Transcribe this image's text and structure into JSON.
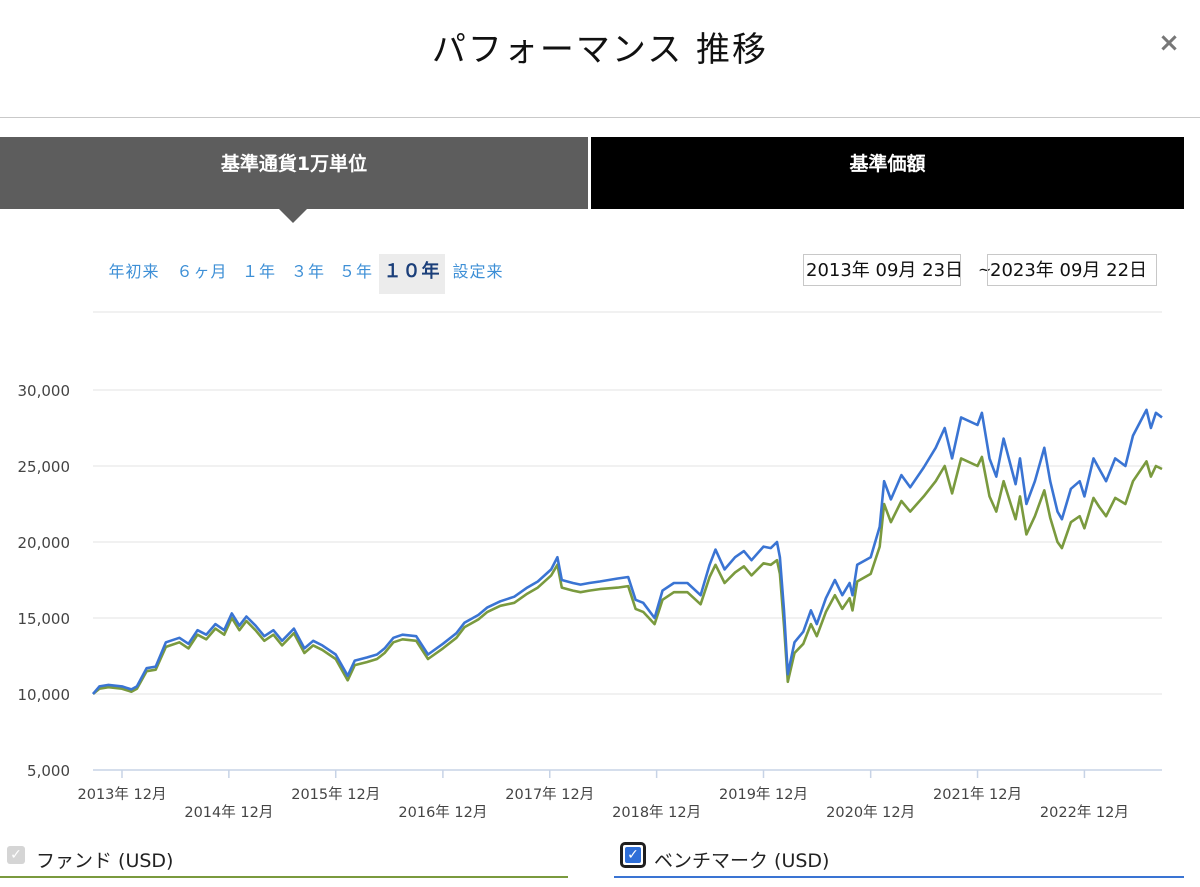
{
  "header": {
    "title": "パフォーマンス 推移",
    "close_label": "×"
  },
  "tabs": [
    {
      "label": "基準通貨1万単位",
      "active": true
    },
    {
      "label": "基準価額",
      "active": false
    }
  ],
  "ranges": [
    {
      "label": "年初来",
      "active": false
    },
    {
      "label": "６ヶ月",
      "active": false
    },
    {
      "label": "１年",
      "active": false
    },
    {
      "label": "３年",
      "active": false
    },
    {
      "label": "５年",
      "active": false
    },
    {
      "label": "１０年",
      "active": true
    },
    {
      "label": "設定来",
      "active": false
    }
  ],
  "date_range": {
    "from": "2013年 09月 23日",
    "separator": "~",
    "to": "2023年 09月 22日"
  },
  "legend": {
    "fund": {
      "label": "ファンド (USD)",
      "checked": true,
      "disabled": true,
      "color": "#7a9a3e"
    },
    "benchmark": {
      "label": "ベンチマーク (USD)",
      "checked": true,
      "color": "#3a74d3"
    }
  },
  "chart_data": {
    "type": "line",
    "title": "",
    "xlabel": "",
    "ylabel": "",
    "xlim": [
      "2013-09-23",
      "2023-09-22"
    ],
    "ylim": [
      5000,
      30000
    ],
    "yticks": [
      {
        "value": 5000,
        "label": "5,000"
      },
      {
        "value": 10000,
        "label": "10,000"
      },
      {
        "value": 15000,
        "label": "15,000"
      },
      {
        "value": 20000,
        "label": "20,000"
      },
      {
        "value": 25000,
        "label": "25,000"
      },
      {
        "value": 30000,
        "label": "30,000"
      }
    ],
    "xticks": [
      {
        "date": "2013-12-31",
        "label": "2013年 12月"
      },
      {
        "date": "2014-12-31",
        "label": "2014年 12月"
      },
      {
        "date": "2015-12-31",
        "label": "2015年 12月"
      },
      {
        "date": "2016-12-31",
        "label": "2016年 12月"
      },
      {
        "date": "2017-12-31",
        "label": "2017年 12月"
      },
      {
        "date": "2018-12-31",
        "label": "2018年 12月"
      },
      {
        "date": "2019-12-31",
        "label": "2019年 12月"
      },
      {
        "date": "2020-12-31",
        "label": "2020年 12月"
      },
      {
        "date": "2021-12-31",
        "label": "2021年 12月"
      },
      {
        "date": "2022-12-31",
        "label": "2022年 12月"
      }
    ],
    "grid": true,
    "series": [
      {
        "name": "ベンチマーク (USD)",
        "color": "#3a74d3",
        "points": [
          [
            "2013-09-23",
            10000
          ],
          [
            "2013-10-15",
            10500
          ],
          [
            "2013-11-15",
            10600
          ],
          [
            "2013-12-31",
            10500
          ],
          [
            "2014-02-01",
            10300
          ],
          [
            "2014-02-20",
            10500
          ],
          [
            "2014-03-25",
            11700
          ],
          [
            "2014-04-25",
            11800
          ],
          [
            "2014-05-30",
            13400
          ],
          [
            "2014-07-15",
            13700
          ],
          [
            "2014-08-15",
            13300
          ],
          [
            "2014-09-15",
            14200
          ],
          [
            "2014-10-15",
            13900
          ],
          [
            "2014-11-15",
            14600
          ],
          [
            "2014-12-15",
            14200
          ],
          [
            "2015-01-10",
            15300
          ],
          [
            "2015-02-05",
            14500
          ],
          [
            "2015-03-01",
            15100
          ],
          [
            "2015-04-01",
            14500
          ],
          [
            "2015-05-01",
            13800
          ],
          [
            "2015-06-01",
            14200
          ],
          [
            "2015-07-01",
            13500
          ],
          [
            "2015-08-10",
            14300
          ],
          [
            "2015-09-15",
            13000
          ],
          [
            "2015-10-15",
            13500
          ],
          [
            "2015-11-15",
            13200
          ],
          [
            "2015-12-31",
            12600
          ],
          [
            "2016-02-10",
            11200
          ],
          [
            "2016-03-05",
            12200
          ],
          [
            "2016-04-15",
            12400
          ],
          [
            "2016-05-20",
            12600
          ],
          [
            "2016-06-15",
            13000
          ],
          [
            "2016-07-15",
            13700
          ],
          [
            "2016-08-15",
            13900
          ],
          [
            "2016-10-01",
            13800
          ],
          [
            "2016-11-10",
            12600
          ],
          [
            "2016-12-31",
            13300
          ],
          [
            "2017-02-15",
            14000
          ],
          [
            "2017-03-15",
            14700
          ],
          [
            "2017-05-01",
            15200
          ],
          [
            "2017-06-01",
            15700
          ],
          [
            "2017-07-15",
            16100
          ],
          [
            "2017-09-01",
            16400
          ],
          [
            "2017-10-15",
            17000
          ],
          [
            "2017-11-20",
            17400
          ],
          [
            "2018-01-05",
            18200
          ],
          [
            "2018-01-26",
            19000
          ],
          [
            "2018-02-10",
            17500
          ],
          [
            "2018-03-20",
            17300
          ],
          [
            "2018-04-15",
            17200
          ],
          [
            "2018-05-15",
            17300
          ],
          [
            "2018-06-20",
            17400
          ],
          [
            "2018-08-20",
            17600
          ],
          [
            "2018-09-25",
            17700
          ],
          [
            "2018-10-20",
            16200
          ],
          [
            "2018-11-15",
            16000
          ],
          [
            "2018-12-24",
            15000
          ],
          [
            "2019-01-20",
            16800
          ],
          [
            "2019-02-28",
            17300
          ],
          [
            "2019-04-15",
            17300
          ],
          [
            "2019-05-30",
            16500
          ],
          [
            "2019-06-30",
            18500
          ],
          [
            "2019-07-20",
            19500
          ],
          [
            "2019-08-20",
            18200
          ],
          [
            "2019-09-25",
            19000
          ],
          [
            "2019-10-25",
            19400
          ],
          [
            "2019-11-20",
            18800
          ],
          [
            "2019-12-31",
            19700
          ],
          [
            "2020-01-25",
            19600
          ],
          [
            "2020-02-15",
            20000
          ],
          [
            "2020-02-25",
            19000
          ],
          [
            "2020-03-10",
            15500
          ],
          [
            "2020-03-23",
            11300
          ],
          [
            "2020-04-15",
            13400
          ],
          [
            "2020-05-15",
            14100
          ],
          [
            "2020-06-10",
            15500
          ],
          [
            "2020-06-30",
            14600
          ],
          [
            "2020-07-31",
            16300
          ],
          [
            "2020-08-31",
            17500
          ],
          [
            "2020-09-25",
            16500
          ],
          [
            "2020-10-20",
            17300
          ],
          [
            "2020-10-30",
            16500
          ],
          [
            "2020-11-15",
            18500
          ],
          [
            "2020-12-31",
            19000
          ],
          [
            "2021-01-31",
            21000
          ],
          [
            "2021-02-15",
            24000
          ],
          [
            "2021-03-10",
            22800
          ],
          [
            "2021-04-15",
            24400
          ],
          [
            "2021-05-15",
            23600
          ],
          [
            "2021-06-30",
            24900
          ],
          [
            "2021-08-10",
            26200
          ],
          [
            "2021-09-10",
            27500
          ],
          [
            "2021-10-05",
            25500
          ],
          [
            "2021-11-05",
            28200
          ],
          [
            "2021-12-31",
            27700
          ],
          [
            "2022-01-15",
            28500
          ],
          [
            "2022-02-10",
            25500
          ],
          [
            "2022-03-05",
            24300
          ],
          [
            "2022-03-30",
            26800
          ],
          [
            "2022-04-25",
            24900
          ],
          [
            "2022-05-10",
            23800
          ],
          [
            "2022-05-25",
            25500
          ],
          [
            "2022-06-16",
            22500
          ],
          [
            "2022-07-15",
            24000
          ],
          [
            "2022-08-16",
            26200
          ],
          [
            "2022-09-05",
            24000
          ],
          [
            "2022-09-30",
            22000
          ],
          [
            "2022-10-15",
            21500
          ],
          [
            "2022-11-15",
            23500
          ],
          [
            "2022-12-15",
            24000
          ],
          [
            "2022-12-31",
            23000
          ],
          [
            "2023-01-31",
            25500
          ],
          [
            "2023-02-20",
            24800
          ],
          [
            "2023-03-15",
            24000
          ],
          [
            "2023-04-15",
            25500
          ],
          [
            "2023-05-20",
            25000
          ],
          [
            "2023-06-15",
            27000
          ],
          [
            "2023-07-31",
            28700
          ],
          [
            "2023-08-15",
            27500
          ],
          [
            "2023-09-01",
            28500
          ],
          [
            "2023-09-22",
            28200
          ]
        ]
      },
      {
        "name": "ファンド (USD)",
        "color": "#7a9a3e",
        "points": [
          [
            "2013-09-23",
            10000
          ],
          [
            "2013-10-15",
            10350
          ],
          [
            "2013-11-15",
            10450
          ],
          [
            "2013-12-31",
            10350
          ],
          [
            "2014-02-01",
            10150
          ],
          [
            "2014-02-20",
            10350
          ],
          [
            "2014-03-25",
            11500
          ],
          [
            "2014-04-25",
            11600
          ],
          [
            "2014-05-30",
            13100
          ],
          [
            "2014-07-15",
            13400
          ],
          [
            "2014-08-15",
            13000
          ],
          [
            "2014-09-15",
            13900
          ],
          [
            "2014-10-15",
            13600
          ],
          [
            "2014-11-15",
            14300
          ],
          [
            "2014-12-15",
            13900
          ],
          [
            "2015-01-10",
            15000
          ],
          [
            "2015-02-05",
            14200
          ],
          [
            "2015-03-01",
            14800
          ],
          [
            "2015-04-01",
            14200
          ],
          [
            "2015-05-01",
            13500
          ],
          [
            "2015-06-01",
            13900
          ],
          [
            "2015-07-01",
            13200
          ],
          [
            "2015-08-10",
            14000
          ],
          [
            "2015-09-15",
            12700
          ],
          [
            "2015-10-15",
            13200
          ],
          [
            "2015-11-15",
            12900
          ],
          [
            "2015-12-31",
            12300
          ],
          [
            "2016-02-10",
            10900
          ],
          [
            "2016-03-05",
            11900
          ],
          [
            "2016-04-15",
            12100
          ],
          [
            "2016-05-20",
            12300
          ],
          [
            "2016-06-15",
            12700
          ],
          [
            "2016-07-15",
            13400
          ],
          [
            "2016-08-15",
            13600
          ],
          [
            "2016-10-01",
            13500
          ],
          [
            "2016-11-10",
            12300
          ],
          [
            "2016-12-31",
            13000
          ],
          [
            "2017-02-15",
            13700
          ],
          [
            "2017-03-15",
            14400
          ],
          [
            "2017-05-01",
            14900
          ],
          [
            "2017-06-01",
            15400
          ],
          [
            "2017-07-15",
            15800
          ],
          [
            "2017-09-01",
            16000
          ],
          [
            "2017-10-15",
            16600
          ],
          [
            "2017-11-20",
            17000
          ],
          [
            "2018-01-05",
            17800
          ],
          [
            "2018-01-26",
            18500
          ],
          [
            "2018-02-10",
            17000
          ],
          [
            "2018-03-20",
            16800
          ],
          [
            "2018-04-15",
            16700
          ],
          [
            "2018-05-15",
            16800
          ],
          [
            "2018-06-20",
            16900
          ],
          [
            "2018-08-20",
            17000
          ],
          [
            "2018-09-25",
            17100
          ],
          [
            "2018-10-20",
            15600
          ],
          [
            "2018-11-15",
            15400
          ],
          [
            "2018-12-24",
            14600
          ],
          [
            "2019-01-20",
            16200
          ],
          [
            "2019-02-28",
            16700
          ],
          [
            "2019-04-15",
            16700
          ],
          [
            "2019-05-30",
            15900
          ],
          [
            "2019-06-30",
            17700
          ],
          [
            "2019-07-20",
            18500
          ],
          [
            "2019-08-20",
            17300
          ],
          [
            "2019-09-25",
            18000
          ],
          [
            "2019-10-25",
            18400
          ],
          [
            "2019-11-20",
            17800
          ],
          [
            "2019-12-31",
            18600
          ],
          [
            "2020-01-25",
            18500
          ],
          [
            "2020-02-15",
            18800
          ],
          [
            "2020-02-25",
            17900
          ],
          [
            "2020-03-10",
            14500
          ],
          [
            "2020-03-23",
            10800
          ],
          [
            "2020-04-15",
            12700
          ],
          [
            "2020-05-15",
            13300
          ],
          [
            "2020-06-10",
            14600
          ],
          [
            "2020-06-30",
            13800
          ],
          [
            "2020-07-31",
            15400
          ],
          [
            "2020-08-31",
            16500
          ],
          [
            "2020-09-25",
            15600
          ],
          [
            "2020-10-20",
            16300
          ],
          [
            "2020-10-30",
            15500
          ],
          [
            "2020-11-15",
            17400
          ],
          [
            "2020-12-31",
            17900
          ],
          [
            "2021-01-31",
            19700
          ],
          [
            "2021-02-15",
            22500
          ],
          [
            "2021-03-10",
            21300
          ],
          [
            "2021-04-15",
            22700
          ],
          [
            "2021-05-15",
            22000
          ],
          [
            "2021-06-30",
            23000
          ],
          [
            "2021-08-10",
            24000
          ],
          [
            "2021-09-10",
            25000
          ],
          [
            "2021-10-05",
            23200
          ],
          [
            "2021-11-05",
            25500
          ],
          [
            "2021-12-31",
            25000
          ],
          [
            "2022-01-15",
            25600
          ],
          [
            "2022-02-10",
            23000
          ],
          [
            "2022-03-05",
            22000
          ],
          [
            "2022-03-30",
            24000
          ],
          [
            "2022-04-25",
            22400
          ],
          [
            "2022-05-10",
            21500
          ],
          [
            "2022-05-25",
            23000
          ],
          [
            "2022-06-16",
            20500
          ],
          [
            "2022-07-15",
            21700
          ],
          [
            "2022-08-16",
            23400
          ],
          [
            "2022-09-05",
            21600
          ],
          [
            "2022-09-30",
            20000
          ],
          [
            "2022-10-15",
            19600
          ],
          [
            "2022-11-15",
            21300
          ],
          [
            "2022-12-15",
            21700
          ],
          [
            "2022-12-31",
            20900
          ],
          [
            "2023-01-31",
            22900
          ],
          [
            "2023-02-20",
            22300
          ],
          [
            "2023-03-15",
            21700
          ],
          [
            "2023-04-15",
            22900
          ],
          [
            "2023-05-20",
            22500
          ],
          [
            "2023-06-15",
            24000
          ],
          [
            "2023-07-31",
            25300
          ],
          [
            "2023-08-15",
            24300
          ],
          [
            "2023-09-01",
            25000
          ],
          [
            "2023-09-22",
            24800
          ]
        ]
      }
    ]
  }
}
